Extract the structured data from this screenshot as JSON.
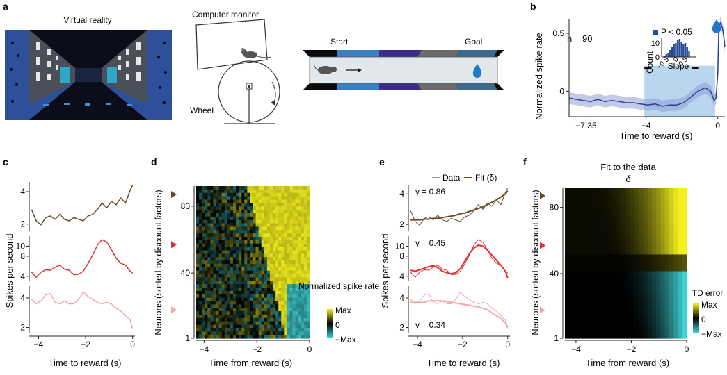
{
  "panels": {
    "a": {
      "label": "a",
      "vr_title": "Virtual reality",
      "monitor_label": "Computer monitor",
      "wheel_label": "Wheel",
      "track_start": "Start",
      "track_goal": "Goal",
      "colors": {
        "track_blue": "#3b7fc4",
        "track_purple": "#3c2d8a",
        "track_grey": "#6b6b6b",
        "track_steel": "#3c6a8e",
        "drop": "#1f77c9"
      }
    },
    "b": {
      "label": "b"
    },
    "c": {
      "label": "c"
    },
    "d": {
      "label": "d"
    },
    "e": {
      "label": "e"
    },
    "f": {
      "label": "f"
    }
  },
  "chart_data": [
    {
      "id": "b",
      "type": "line",
      "annotation": "n = 90",
      "xlabel": "Time to reward (s)",
      "ylabel": "Normalized spike rate",
      "xticks": [
        {
          "v": -7.35,
          "label": "−7.35"
        },
        {
          "v": -4,
          "label": "−4"
        },
        {
          "v": 0,
          "label": "0"
        }
      ],
      "yticks": [
        {
          "v": 0,
          "label": "0"
        },
        {
          "v": 0.5,
          "label": "0.5"
        }
      ],
      "xlim": [
        -8.3,
        0.4
      ],
      "ylim": [
        -0.22,
        0.62
      ],
      "shaded_window": [
        -4.1,
        -0.15
      ],
      "bars": [
        [
          -4.1,
          -3.7
        ],
        [
          -1.45,
          -1.05
        ]
      ],
      "bar_y": 0.2,
      "series": [
        {
          "x": [
            -8.3,
            -7.9,
            -7.5,
            -7.1,
            -6.7,
            -6.3,
            -5.9,
            -5.5,
            -5.1,
            -4.7,
            -4.3,
            -3.9,
            -3.5,
            -3.1,
            -2.7,
            -2.3,
            -1.9,
            -1.5,
            -1.1,
            -0.7,
            -0.4,
            -0.2,
            -0.1,
            0.0,
            0.05,
            0.15,
            0.3,
            0.4
          ],
          "y": [
            -0.06,
            -0.07,
            -0.08,
            -0.09,
            -0.07,
            -0.09,
            -0.08,
            -0.09,
            -0.1,
            -0.1,
            -0.11,
            -0.12,
            -0.11,
            -0.13,
            -0.12,
            -0.12,
            -0.1,
            -0.05,
            0.0,
            0.03,
            0.0,
            -0.08,
            -0.06,
            0.15,
            0.5,
            0.6,
            0.52,
            0.38
          ],
          "band": 0.05,
          "color": "#2a3f9e"
        }
      ],
      "inset": {
        "type": "bar",
        "legend": "P < 0.05",
        "xlabel": "Slope",
        "ylabel": "Count",
        "xticks": [
          {
            "v": -0.5,
            "label": "−0.5"
          },
          {
            "v": 0,
            "label": "0"
          },
          {
            "v": 0.5,
            "label": "0.5"
          }
        ],
        "yticks": [
          {
            "v": 0,
            "label": "0"
          },
          {
            "v": 10,
            "label": "10"
          }
        ],
        "xlim": [
          -0.9,
          0.9
        ],
        "ylim": [
          0,
          14
        ],
        "bins": [
          -0.75,
          -0.65,
          -0.55,
          -0.45,
          -0.35,
          -0.25,
          -0.15,
          -0.05,
          0.05,
          0.15,
          0.25,
          0.35,
          0.45,
          0.55
        ],
        "counts": [
          1,
          2,
          3,
          5,
          7,
          9,
          10,
          12,
          13,
          11,
          9,
          10,
          7,
          4
        ],
        "color": "#2a4a9a"
      }
    },
    {
      "id": "c",
      "type": "line",
      "xlabel": "Time to reward (s)",
      "ylabel": "Spikes per second",
      "xticks": [
        {
          "v": -4,
          "label": "−4"
        },
        {
          "v": -2,
          "label": "−2"
        },
        {
          "v": 0,
          "label": "0"
        }
      ],
      "xlim": [
        -4.4,
        0.1
      ],
      "subplots": [
        {
          "color": "#6b4a2b",
          "ylim": [
            1.6,
            4.6
          ],
          "yticks": [
            {
              "v": 2,
              "label": "2"
            },
            {
              "v": 4,
              "label": "4"
            }
          ],
          "x": [
            -4.3,
            -4.1,
            -3.9,
            -3.7,
            -3.5,
            -3.3,
            -3.1,
            -2.9,
            -2.7,
            -2.5,
            -2.3,
            -2.1,
            -1.9,
            -1.7,
            -1.5,
            -1.3,
            -1.1,
            -0.9,
            -0.7,
            -0.5,
            -0.3,
            -0.1,
            0.0
          ],
          "y": [
            2.9,
            2.2,
            1.95,
            2.4,
            2.5,
            2.3,
            2.6,
            2.3,
            2.2,
            2.4,
            2.3,
            2.2,
            2.5,
            2.6,
            2.9,
            3.3,
            3.0,
            3.4,
            3.2,
            3.6,
            3.3,
            4.1,
            4.4
          ]
        },
        {
          "color": "#e03030",
          "ylim": [
            3,
            12
          ],
          "yticks": [
            {
              "v": 4,
              "label": "4"
            },
            {
              "v": 8,
              "label": "8"
            },
            {
              "v": 10,
              "label": "10"
            }
          ],
          "x": [
            -4.3,
            -4.1,
            -3.9,
            -3.7,
            -3.5,
            -3.3,
            -3.1,
            -2.9,
            -2.7,
            -2.5,
            -2.3,
            -2.1,
            -1.9,
            -1.7,
            -1.5,
            -1.3,
            -1.1,
            -0.9,
            -0.7,
            -0.5,
            -0.3,
            -0.1,
            0.0
          ],
          "y": [
            4.8,
            3.8,
            4.8,
            5.3,
            5.2,
            5.8,
            6.2,
            5.4,
            5.2,
            4.3,
            4.4,
            5.0,
            6.5,
            8.2,
            10.2,
            11.3,
            10.8,
            9.3,
            7.6,
            6.6,
            6.2,
            5.0,
            4.6
          ]
        },
        {
          "color": "#f2a6aa",
          "ylim": [
            1.6,
            4.8
          ],
          "yticks": [
            {
              "v": 2,
              "label": "2"
            },
            {
              "v": 4,
              "label": "4"
            }
          ],
          "x": [
            -4.3,
            -4.1,
            -3.9,
            -3.7,
            -3.5,
            -3.3,
            -3.1,
            -2.9,
            -2.7,
            -2.5,
            -2.3,
            -2.1,
            -1.9,
            -1.7,
            -1.5,
            -1.3,
            -1.1,
            -0.9,
            -0.7,
            -0.5,
            -0.3,
            -0.1,
            0.0
          ],
          "y": [
            3.9,
            3.6,
            3.8,
            4.2,
            4.3,
            3.7,
            3.6,
            3.8,
            3.6,
            3.6,
            3.9,
            4.4,
            4.1,
            3.9,
            3.7,
            3.6,
            3.7,
            3.6,
            3.3,
            3.1,
            2.8,
            2.5,
            1.9
          ]
        }
      ]
    },
    {
      "id": "d",
      "type": "heatmap",
      "xlabel": "Time from reward (s)",
      "ylabel": "Neurons (sorted by discount factors)",
      "xticks": [
        {
          "v": -4,
          "label": "−4"
        },
        {
          "v": -2,
          "label": "−2"
        },
        {
          "v": 0,
          "label": "0"
        }
      ],
      "yticks": [
        {
          "v": 1,
          "label": "1"
        },
        {
          "v": 40,
          "label": "40"
        },
        {
          "v": 80,
          "label": "80"
        }
      ],
      "xlim": [
        -4.3,
        0
      ],
      "ylim": [
        1,
        92
      ],
      "colorbar": {
        "title": "Normalized spike rate",
        "labels": [
          "Max",
          "0",
          "−Max"
        ]
      },
      "markers": [
        {
          "row": 87,
          "color": "#6b4a2b"
        },
        {
          "row": 57,
          "color": "#e03030"
        },
        {
          "row": 18,
          "color": "#f2a6aa"
        }
      ]
    },
    {
      "id": "e",
      "type": "line",
      "xlabel": "Time to reward (s)",
      "ylabel": "Spikes per second",
      "legend": [
        {
          "name": "Data"
        },
        {
          "name": "Fit (δ)"
        }
      ],
      "xticks": [
        {
          "v": -4,
          "label": "−4"
        },
        {
          "v": -2,
          "label": "−2"
        },
        {
          "v": 0,
          "label": "0"
        }
      ],
      "xlim": [
        -4.4,
        0.1
      ],
      "subplots": [
        {
          "color": "#6b4a2b",
          "gamma": "γ = 0.86",
          "ylim": [
            1.6,
            4.6
          ],
          "yticks": [
            {
              "v": 2,
              "label": "2"
            },
            {
              "v": 4,
              "label": "4"
            }
          ],
          "x": [
            -4.3,
            -4.1,
            -3.9,
            -3.7,
            -3.5,
            -3.3,
            -3.1,
            -2.9,
            -2.7,
            -2.5,
            -2.3,
            -2.1,
            -1.9,
            -1.7,
            -1.5,
            -1.3,
            -1.1,
            -0.9,
            -0.7,
            -0.5,
            -0.3,
            -0.1,
            0.0
          ],
          "data": [
            2.9,
            2.2,
            1.95,
            2.4,
            2.5,
            2.3,
            2.6,
            2.3,
            2.2,
            2.4,
            2.3,
            2.2,
            2.5,
            2.6,
            2.9,
            3.3,
            3.0,
            3.4,
            3.2,
            3.6,
            3.3,
            4.1,
            4.4
          ],
          "fit": [
            2.3,
            2.3,
            2.3,
            2.35,
            2.35,
            2.4,
            2.4,
            2.45,
            2.5,
            2.55,
            2.6,
            2.7,
            2.75,
            2.85,
            2.95,
            3.05,
            3.15,
            3.3,
            3.45,
            3.6,
            3.8,
            4.0,
            4.2
          ]
        },
        {
          "color": "#e03030",
          "gamma": "γ = 0.45",
          "ylim": [
            3,
            12
          ],
          "yticks": [
            {
              "v": 4,
              "label": "4"
            },
            {
              "v": 8,
              "label": "8"
            },
            {
              "v": 10,
              "label": "10"
            }
          ],
          "x": [
            -4.3,
            -4.1,
            -3.9,
            -3.7,
            -3.5,
            -3.3,
            -3.1,
            -2.9,
            -2.7,
            -2.5,
            -2.3,
            -2.1,
            -1.9,
            -1.7,
            -1.5,
            -1.3,
            -1.1,
            -0.9,
            -0.7,
            -0.5,
            -0.3,
            -0.1,
            0.0
          ],
          "data": [
            4.8,
            3.8,
            4.8,
            5.3,
            5.2,
            5.8,
            6.2,
            5.4,
            5.2,
            4.3,
            4.4,
            5.0,
            6.5,
            8.2,
            10.2,
            11.3,
            10.8,
            9.3,
            7.6,
            6.6,
            6.2,
            5.0,
            4.6
          ],
          "fit": [
            5.2,
            5.0,
            5.3,
            5.6,
            5.9,
            6.1,
            5.7,
            5.0,
            4.7,
            4.5,
            4.7,
            5.5,
            7.0,
            8.5,
            9.6,
            10.2,
            10.0,
            9.2,
            8.2,
            7.2,
            6.2,
            5.0,
            3.6
          ]
        },
        {
          "color": "#f2a6aa",
          "gamma": "γ = 0.34",
          "ylim": [
            1.6,
            4.8
          ],
          "yticks": [
            {
              "v": 2,
              "label": "2"
            },
            {
              "v": 4,
              "label": "4"
            }
          ],
          "x": [
            -4.3,
            -4.1,
            -3.9,
            -3.7,
            -3.5,
            -3.3,
            -3.1,
            -2.9,
            -2.7,
            -2.5,
            -2.3,
            -2.1,
            -1.9,
            -1.7,
            -1.5,
            -1.3,
            -1.1,
            -0.9,
            -0.7,
            -0.5,
            -0.3,
            -0.1,
            0.0
          ],
          "data": [
            3.9,
            3.6,
            3.8,
            4.2,
            4.3,
            3.7,
            3.6,
            3.8,
            3.6,
            3.6,
            3.9,
            4.4,
            4.1,
            3.9,
            3.7,
            3.6,
            3.7,
            3.6,
            3.3,
            3.1,
            2.8,
            2.5,
            1.9
          ],
          "fit": [
            3.7,
            3.7,
            3.7,
            3.7,
            3.8,
            3.8,
            3.8,
            3.8,
            3.75,
            3.7,
            3.65,
            3.6,
            3.55,
            3.5,
            3.45,
            3.4,
            3.3,
            3.2,
            3.0,
            2.8,
            2.6,
            2.3,
            2.0
          ]
        }
      ]
    },
    {
      "id": "f",
      "type": "heatmap",
      "title": "Fit to the data",
      "subtitle": "δ",
      "xlabel": "Time from reward (s)",
      "ylabel": "Neurons (sorted by discount factors)",
      "xticks": [
        {
          "v": -4,
          "label": "−4"
        },
        {
          "v": -2,
          "label": "−2"
        },
        {
          "v": 0,
          "label": "0"
        }
      ],
      "yticks": [
        {
          "v": 1,
          "label": "1"
        },
        {
          "v": 40,
          "label": "40"
        },
        {
          "v": 80,
          "label": "80"
        }
      ],
      "xlim": [
        -4.4,
        0
      ],
      "ylim": [
        1,
        92
      ],
      "colorbar": {
        "title": "TD error",
        "labels": [
          "Max",
          "0",
          "−Max"
        ]
      },
      "markers": [
        {
          "row": 87,
          "color": "#6b4a2b"
        },
        {
          "row": 57,
          "color": "#e03030"
        },
        {
          "row": 18,
          "color": "#f2a6aa"
        }
      ]
    }
  ]
}
